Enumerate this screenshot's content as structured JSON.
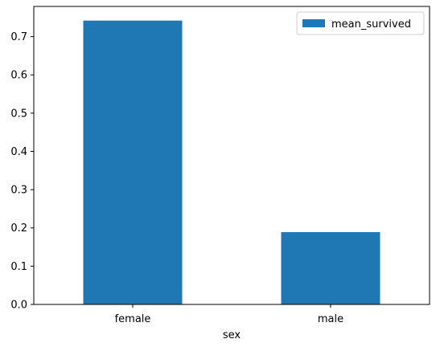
{
  "chart_data": {
    "type": "bar",
    "categories": [
      "female",
      "male"
    ],
    "series": [
      {
        "name": "mean_survived",
        "values": [
          0.742,
          0.189
        ]
      }
    ],
    "title": "",
    "xlabel": "sex",
    "ylabel": "",
    "ylim": [
      0,
      0.779
    ],
    "yticks": [
      "0.0",
      "0.1",
      "0.2",
      "0.3",
      "0.4",
      "0.5",
      "0.6",
      "0.7"
    ],
    "grid": false,
    "legend_position": "top-right",
    "bar_color": "#1f77b4"
  }
}
